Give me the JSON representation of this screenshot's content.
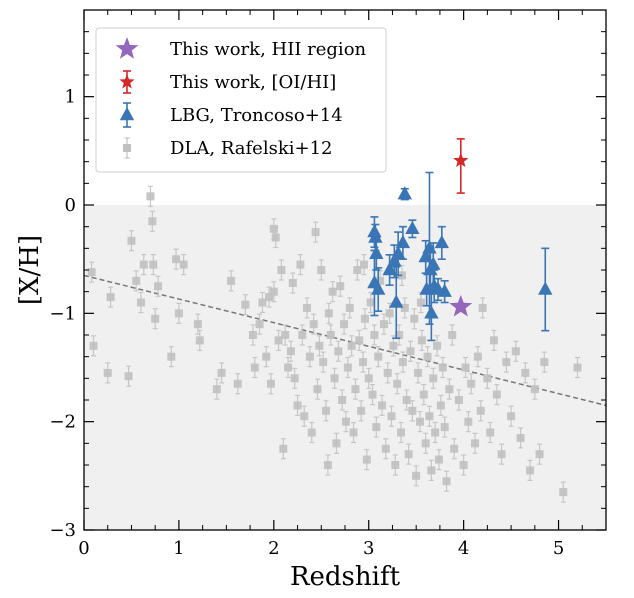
{
  "chart_data": {
    "type": "scatter",
    "title": "",
    "xlabel": "Redshift",
    "ylabel": "[X/H]",
    "xlim": [
      0,
      5.5
    ],
    "ylim": [
      -3,
      1.8
    ],
    "xticks": [
      "0",
      "1",
      "2",
      "3",
      "4",
      "5"
    ],
    "yticks": [
      "−3",
      "−2",
      "−1",
      "0",
      "1"
    ],
    "shaded_region": {
      "y_from": -3,
      "y_to": 0,
      "color": "#f0f0f0"
    },
    "legend_position": "top-left",
    "legend": [
      {
        "label": "This work, HII region",
        "marker": "star",
        "color": "#9467bd"
      },
      {
        "label": "This work, [OI/HI]",
        "marker": "star",
        "color": "#d62728"
      },
      {
        "label": "LBG, Troncoso+14",
        "marker": "triangle",
        "color": "#3a75b5"
      },
      {
        "label": "DLA, Rafelski+12",
        "marker": "square",
        "color": "#c0c0c0"
      }
    ],
    "trend_line": {
      "x": [
        0,
        5.5
      ],
      "y": [
        -0.65,
        -1.85
      ],
      "style": "dashed",
      "color": "#777777"
    },
    "series": [
      {
        "name": "This work, HII region",
        "marker": "star",
        "color": "#9467bd",
        "points": [
          {
            "x": 3.97,
            "y": -0.94
          }
        ]
      },
      {
        "name": "This work, [OI/HI]",
        "marker": "star",
        "color": "#d62728",
        "points": [
          {
            "x": 3.97,
            "y": 0.41,
            "err_lo": 0.3,
            "err_hi": 0.2
          }
        ]
      },
      {
        "name": "LBG, Troncoso+14",
        "marker": "triangle",
        "color": "#3a75b5",
        "points": [
          {
            "x": 3.06,
            "y": -0.25,
            "err": 0.14
          },
          {
            "x": 3.07,
            "y": -0.3,
            "err": 0.12
          },
          {
            "x": 3.08,
            "y": -0.45,
            "err": 0.15
          },
          {
            "x": 3.06,
            "y": -0.72,
            "err": 0.3
          },
          {
            "x": 3.1,
            "y": -0.78,
            "err": 0.2
          },
          {
            "x": 3.22,
            "y": -0.6,
            "err": 0.14
          },
          {
            "x": 3.27,
            "y": -0.52,
            "err": 0.15
          },
          {
            "x": 3.29,
            "y": -0.9,
            "err": 0.33
          },
          {
            "x": 3.31,
            "y": -0.45,
            "err": 0.2
          },
          {
            "x": 3.36,
            "y": -0.35,
            "err": 0.15
          },
          {
            "x": 3.38,
            "y": 0.1,
            "err": 0.05
          },
          {
            "x": 3.46,
            "y": -0.22,
            "err": 0.08
          },
          {
            "x": 3.6,
            "y": -0.48,
            "err": 0.15
          },
          {
            "x": 3.61,
            "y": -0.78,
            "err": 0.15
          },
          {
            "x": 3.64,
            "y": -0.4,
            "err": 0.7
          },
          {
            "x": 3.65,
            "y": -0.6,
            "err": 0.2
          },
          {
            "x": 3.66,
            "y": -1.0,
            "err": 0.25
          },
          {
            "x": 3.68,
            "y": -0.55,
            "err": 0.2
          },
          {
            "x": 3.69,
            "y": -0.75,
            "err": 0.15
          },
          {
            "x": 3.73,
            "y": -0.78,
            "err": 0.1
          },
          {
            "x": 3.77,
            "y": -0.35,
            "err": 0.15
          },
          {
            "x": 3.8,
            "y": -0.8,
            "err": 0.1
          },
          {
            "x": 4.86,
            "y": -0.78,
            "err": 0.38
          }
        ]
      },
      {
        "name": "DLA, Rafelski+12",
        "marker": "square",
        "color": "#c0c0c0",
        "points": [
          {
            "x": 0.08,
            "y": -0.62
          },
          {
            "x": 0.1,
            "y": -1.3
          },
          {
            "x": 0.25,
            "y": -1.55
          },
          {
            "x": 0.28,
            "y": -0.85
          },
          {
            "x": 0.47,
            "y": -1.58
          },
          {
            "x": 0.5,
            "y": -0.33
          },
          {
            "x": 0.55,
            "y": -0.7
          },
          {
            "x": 0.6,
            "y": -0.9
          },
          {
            "x": 0.63,
            "y": -0.55
          },
          {
            "x": 0.7,
            "y": 0.08
          },
          {
            "x": 0.72,
            "y": -0.15
          },
          {
            "x": 0.73,
            "y": -0.55
          },
          {
            "x": 0.75,
            "y": -1.05
          },
          {
            "x": 0.78,
            "y": -0.75
          },
          {
            "x": 0.92,
            "y": -1.4
          },
          {
            "x": 0.97,
            "y": -0.5
          },
          {
            "x": 1.0,
            "y": -1.0
          },
          {
            "x": 1.05,
            "y": -0.55
          },
          {
            "x": 1.2,
            "y": -1.1
          },
          {
            "x": 1.22,
            "y": -1.25
          },
          {
            "x": 1.4,
            "y": -1.7
          },
          {
            "x": 1.45,
            "y": -1.55
          },
          {
            "x": 1.55,
            "y": -0.7
          },
          {
            "x": 1.62,
            "y": -1.65
          },
          {
            "x": 1.7,
            "y": -0.92
          },
          {
            "x": 1.78,
            "y": -1.2
          },
          {
            "x": 1.8,
            "y": -1.5
          },
          {
            "x": 1.85,
            "y": -1.1
          },
          {
            "x": 1.88,
            "y": -0.9
          },
          {
            "x": 1.92,
            "y": -1.4
          },
          {
            "x": 1.95,
            "y": -0.85
          },
          {
            "x": 1.97,
            "y": -1.65
          },
          {
            "x": 2.0,
            "y": -0.8
          },
          {
            "x": 2.0,
            "y": -0.22
          },
          {
            "x": 2.02,
            "y": -0.3
          },
          {
            "x": 2.05,
            "y": -1.25
          },
          {
            "x": 2.08,
            "y": -0.6
          },
          {
            "x": 2.1,
            "y": -2.25
          },
          {
            "x": 2.12,
            "y": -1.2
          },
          {
            "x": 2.15,
            "y": -1.5
          },
          {
            "x": 2.18,
            "y": -1.35
          },
          {
            "x": 2.2,
            "y": -0.72
          },
          {
            "x": 2.22,
            "y": -1.6
          },
          {
            "x": 2.25,
            "y": -1.85
          },
          {
            "x": 2.28,
            "y": -0.55
          },
          {
            "x": 2.3,
            "y": -1.2
          },
          {
            "x": 2.32,
            "y": -1.95
          },
          {
            "x": 2.35,
            "y": -0.95
          },
          {
            "x": 2.38,
            "y": -1.4
          },
          {
            "x": 2.4,
            "y": -2.1
          },
          {
            "x": 2.42,
            "y": -1.1
          },
          {
            "x": 2.44,
            "y": -0.25
          },
          {
            "x": 2.46,
            "y": -1.7
          },
          {
            "x": 2.48,
            "y": -1.3
          },
          {
            "x": 2.5,
            "y": -0.6
          },
          {
            "x": 2.52,
            "y": -1.45
          },
          {
            "x": 2.55,
            "y": -1.9
          },
          {
            "x": 2.57,
            "y": -2.4
          },
          {
            "x": 2.58,
            "y": -1.0
          },
          {
            "x": 2.6,
            "y": -1.2
          },
          {
            "x": 2.62,
            "y": -0.8
          },
          {
            "x": 2.64,
            "y": -1.6
          },
          {
            "x": 2.66,
            "y": -2.2
          },
          {
            "x": 2.68,
            "y": -1.35
          },
          {
            "x": 2.7,
            "y": -0.75
          },
          {
            "x": 2.72,
            "y": -1.8
          },
          {
            "x": 2.74,
            "y": -1.1
          },
          {
            "x": 2.76,
            "y": -2.0
          },
          {
            "x": 2.78,
            "y": -1.5
          },
          {
            "x": 2.8,
            "y": -0.95
          },
          {
            "x": 2.82,
            "y": -1.3
          },
          {
            "x": 2.84,
            "y": -2.1
          },
          {
            "x": 2.86,
            "y": -1.7
          },
          {
            "x": 2.88,
            "y": -0.6
          },
          {
            "x": 2.9,
            "y": -1.25
          },
          {
            "x": 2.92,
            "y": -1.9
          },
          {
            "x": 2.94,
            "y": -1.45
          },
          {
            "x": 2.96,
            "y": -1.05
          },
          {
            "x": 2.98,
            "y": -2.35
          },
          {
            "x": 3.0,
            "y": -1.6
          },
          {
            "x": 3.02,
            "y": -0.9
          },
          {
            "x": 3.04,
            "y": -1.75
          },
          {
            "x": 3.06,
            "y": -1.2
          },
          {
            "x": 3.08,
            "y": -2.05
          },
          {
            "x": 3.1,
            "y": -1.4
          },
          {
            "x": 3.12,
            "y": -0.7
          },
          {
            "x": 3.14,
            "y": -1.85
          },
          {
            "x": 3.16,
            "y": -1.1
          },
          {
            "x": 3.18,
            "y": -2.25
          },
          {
            "x": 3.2,
            "y": -1.55
          },
          {
            "x": 3.22,
            "y": -1.0
          },
          {
            "x": 3.24,
            "y": -1.95
          },
          {
            "x": 3.26,
            "y": -1.3
          },
          {
            "x": 3.28,
            "y": -2.4
          },
          {
            "x": 3.3,
            "y": -1.65
          },
          {
            "x": 3.32,
            "y": -1.2
          },
          {
            "x": 3.34,
            "y": -2.1
          },
          {
            "x": 3.36,
            "y": -1.45
          },
          {
            "x": 3.38,
            "y": -0.95
          },
          {
            "x": 3.4,
            "y": -1.8
          },
          {
            "x": 3.42,
            "y": -2.3
          },
          {
            "x": 3.44,
            "y": -1.35
          },
          {
            "x": 3.46,
            "y": -1.9
          },
          {
            "x": 3.48,
            "y": -1.05
          },
          {
            "x": 3.5,
            "y": -2.5
          },
          {
            "x": 3.52,
            "y": -1.55
          },
          {
            "x": 3.54,
            "y": -2.0
          },
          {
            "x": 3.56,
            "y": -1.25
          },
          {
            "x": 3.58,
            "y": -1.75
          },
          {
            "x": 3.6,
            "y": -2.2
          },
          {
            "x": 3.62,
            "y": -1.4
          },
          {
            "x": 3.64,
            "y": -1.95
          },
          {
            "x": 3.66,
            "y": -2.45
          },
          {
            "x": 3.68,
            "y": -1.6
          },
          {
            "x": 3.7,
            "y": -2.1
          },
          {
            "x": 3.72,
            "y": -1.3
          },
          {
            "x": 3.74,
            "y": -2.35
          },
          {
            "x": 3.76,
            "y": -1.85
          },
          {
            "x": 3.78,
            "y": -1.5
          },
          {
            "x": 3.8,
            "y": -2.05
          },
          {
            "x": 3.82,
            "y": -2.55
          },
          {
            "x": 3.85,
            "y": -1.7
          },
          {
            "x": 3.88,
            "y": -1.2
          },
          {
            "x": 3.9,
            "y": -2.25
          },
          {
            "x": 3.95,
            "y": -1.8
          },
          {
            "x": 4.0,
            "y": -2.4
          },
          {
            "x": 4.02,
            "y": -1.5
          },
          {
            "x": 4.05,
            "y": -2.0
          },
          {
            "x": 4.08,
            "y": -1.65
          },
          {
            "x": 4.12,
            "y": -2.2
          },
          {
            "x": 4.15,
            "y": -1.4
          },
          {
            "x": 4.18,
            "y": -1.9
          },
          {
            "x": 4.2,
            "y": -0.95
          },
          {
            "x": 4.25,
            "y": -1.6
          },
          {
            "x": 4.28,
            "y": -2.1
          },
          {
            "x": 4.32,
            "y": -1.25
          },
          {
            "x": 4.35,
            "y": -1.75
          },
          {
            "x": 4.4,
            "y": -2.3
          },
          {
            "x": 4.45,
            "y": -1.45
          },
          {
            "x": 4.5,
            "y": -1.95
          },
          {
            "x": 4.55,
            "y": -1.35
          },
          {
            "x": 4.6,
            "y": -2.15
          },
          {
            "x": 4.65,
            "y": -1.55
          },
          {
            "x": 4.7,
            "y": -2.45
          },
          {
            "x": 4.75,
            "y": -1.7
          },
          {
            "x": 4.8,
            "y": -2.3
          },
          {
            "x": 4.85,
            "y": -1.45
          },
          {
            "x": 5.05,
            "y": -2.65
          },
          {
            "x": 5.2,
            "y": -1.5
          },
          {
            "x": 3.55,
            "y": -0.9
          },
          {
            "x": 2.95,
            "y": -0.55
          },
          {
            "x": 3.35,
            "y": -0.65
          }
        ]
      }
    ]
  }
}
